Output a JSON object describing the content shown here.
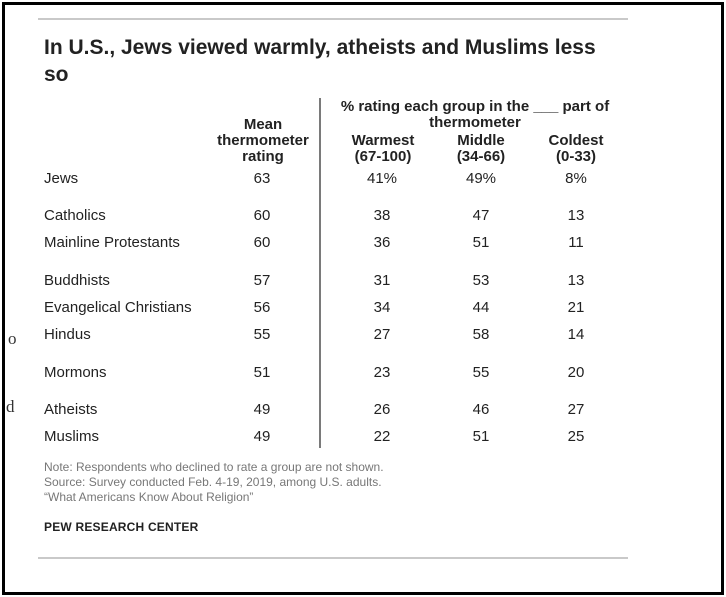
{
  "edge_fragments": [
    "o",
    "d"
  ],
  "chart_data": {
    "type": "table",
    "title": "In U.S., Jews viewed warmly, atheists and Muslims less so",
    "mean_header": [
      "Mean",
      "thermometer",
      "rating"
    ],
    "group_header": [
      "% rating each group in the ___ part of",
      "thermometer"
    ],
    "columns": [
      {
        "key": "warmest",
        "label": [
          "Warmest",
          "(67-100)"
        ]
      },
      {
        "key": "middle",
        "label": [
          "Middle",
          "(34-66)"
        ]
      },
      {
        "key": "coldest",
        "label": [
          "Coldest",
          "(0-33)"
        ]
      }
    ],
    "rows": [
      {
        "group": "Jews",
        "mean": "63",
        "warmest": "41%",
        "middle": "49%",
        "coldest": "8%"
      },
      {
        "group": "Catholics",
        "mean": "60",
        "warmest": "38",
        "middle": "47",
        "coldest": "13"
      },
      {
        "group": "Mainline Protestants",
        "mean": "60",
        "warmest": "36",
        "middle": "51",
        "coldest": "11"
      },
      {
        "group": "Buddhists",
        "mean": "57",
        "warmest": "31",
        "middle": "53",
        "coldest": "13"
      },
      {
        "group": "Evangelical Christians",
        "mean": "56",
        "warmest": "34",
        "middle": "44",
        "coldest": "21"
      },
      {
        "group": "Hindus",
        "mean": "55",
        "warmest": "27",
        "middle": "58",
        "coldest": "14"
      },
      {
        "group": "Mormons",
        "mean": "51",
        "warmest": "23",
        "middle": "55",
        "coldest": "20"
      },
      {
        "group": "Atheists",
        "mean": "49",
        "warmest": "26",
        "middle": "46",
        "coldest": "27"
      },
      {
        "group": "Muslims",
        "mean": "49",
        "warmest": "22",
        "middle": "51",
        "coldest": "25"
      }
    ],
    "notes": [
      "Note: Respondents who declined to rate a group are not shown.",
      "Source: Survey conducted Feb. 4-19, 2019, among U.S. adults.",
      "“What Americans Know About Religion”"
    ],
    "source": "PEW RESEARCH CENTER"
  }
}
